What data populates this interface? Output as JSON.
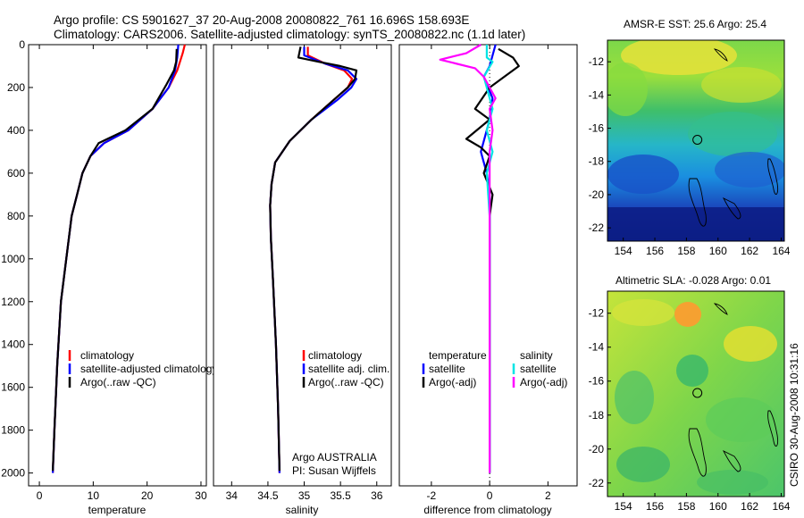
{
  "header": {
    "line1": "Argo profile: CS 5901627_37 20-Aug-2008 20080822_761 16.696S 158.693E",
    "line2": "Climatology: CARS2006. Satellite-adjusted climatology: synTS_20080822.nc (1.1d later)"
  },
  "side_label": "CSIRO 30-Aug-2008 10:31:16",
  "colors": {
    "climatology": "#ff0000",
    "satellite": "#0000ff",
    "argo": "#000000",
    "satellite_salinity": "#00e5e5",
    "argo_salinity": "#ff00ff"
  },
  "chart_data": [
    {
      "type": "line",
      "xlabel": "temperature",
      "xlim": [
        -2,
        31
      ],
      "ylim": [
        2060,
        0
      ],
      "xticks": [
        "0",
        "10",
        "20",
        "30"
      ],
      "yticks": [
        "0",
        "200",
        "400",
        "600",
        "800",
        "1000",
        "1200",
        "1400",
        "1600",
        "1800",
        "2000"
      ],
      "legend": [
        "climatology",
        "satellite-adjusted climatology",
        "Argo(..raw -QC)"
      ],
      "series": [
        {
          "name": "climatology",
          "color": "red",
          "points": [
            [
              27,
              0
            ],
            [
              26.6,
              40
            ],
            [
              25.6,
              120
            ],
            [
              24,
              200
            ],
            [
              21,
              300
            ],
            [
              16.5,
              400
            ],
            [
              12,
              460
            ],
            [
              9.5,
              520
            ],
            [
              8,
              600
            ],
            [
              7,
              700
            ],
            [
              6,
              800
            ],
            [
              5,
              1000
            ],
            [
              4,
              1200
            ],
            [
              3.3,
              1500
            ],
            [
              2.8,
              1800
            ],
            [
              2.5,
              2000
            ]
          ]
        },
        {
          "name": "satellite-adjusted climatology",
          "color": "blue",
          "points": [
            [
              25.8,
              0
            ],
            [
              25.6,
              60
            ],
            [
              25.2,
              120
            ],
            [
              24,
              200
            ],
            [
              21,
              300
            ],
            [
              16.5,
              400
            ],
            [
              12,
              460
            ],
            [
              9.5,
              520
            ],
            [
              8,
              600
            ],
            [
              7,
              700
            ],
            [
              6,
              800
            ],
            [
              5,
              1000
            ],
            [
              4,
              1200
            ],
            [
              3.3,
              1500
            ],
            [
              2.8,
              1800
            ],
            [
              2.5,
              2000
            ]
          ]
        },
        {
          "name": "Argo(..raw -QC)",
          "color": "black",
          "points": [
            [
              25.5,
              20
            ],
            [
              25.4,
              80
            ],
            [
              25,
              120
            ],
            [
              23.5,
              190
            ],
            [
              21,
              300
            ],
            [
              16,
              400
            ],
            [
              11,
              460
            ],
            [
              9.5,
              520
            ],
            [
              8,
              600
            ],
            [
              7,
              700
            ],
            [
              6,
              800
            ],
            [
              5,
              1000
            ],
            [
              4,
              1200
            ],
            [
              3.3,
              1500
            ],
            [
              2.8,
              1800
            ],
            [
              2.5,
              1990
            ]
          ]
        }
      ]
    },
    {
      "type": "line",
      "xlabel": "salinity",
      "xlim": [
        33.75,
        36.2
      ],
      "ylim": [
        2060,
        0
      ],
      "xticks": [
        "34",
        "34.5",
        "35",
        "35.5",
        "36"
      ],
      "legend": [
        "climatology",
        "satellite adj. clim.",
        "Argo(..raw -QC)"
      ],
      "annotation": [
        "Argo AUSTRALIA",
        "PI: Susan Wijffels"
      ],
      "series": [
        {
          "name": "climatology",
          "color": "red",
          "points": [
            [
              35.05,
              10
            ],
            [
              35.05,
              50
            ],
            [
              35.3,
              90
            ],
            [
              35.55,
              120
            ],
            [
              35.66,
              160
            ],
            [
              35.6,
              200
            ],
            [
              35.4,
              260
            ],
            [
              35.1,
              350
            ],
            [
              34.8,
              450
            ],
            [
              34.6,
              550
            ],
            [
              34.55,
              650
            ],
            [
              34.53,
              750
            ],
            [
              34.54,
              900
            ],
            [
              34.57,
              1100
            ],
            [
              34.61,
              1400
            ],
            [
              34.64,
              1700
            ],
            [
              34.66,
              2000
            ]
          ]
        },
        {
          "name": "satellite adj. clim.",
          "color": "blue",
          "points": [
            [
              35,
              10
            ],
            [
              35,
              50
            ],
            [
              35.3,
              90
            ],
            [
              35.6,
              120
            ],
            [
              35.72,
              160
            ],
            [
              35.65,
              200
            ],
            [
              35.45,
              260
            ],
            [
              35.1,
              350
            ],
            [
              34.8,
              450
            ],
            [
              34.6,
              550
            ],
            [
              34.55,
              650
            ],
            [
              34.53,
              750
            ],
            [
              34.54,
              900
            ],
            [
              34.57,
              1100
            ],
            [
              34.61,
              1400
            ],
            [
              34.64,
              1700
            ],
            [
              34.66,
              2000
            ]
          ]
        },
        {
          "name": "Argo(..raw -QC)",
          "color": "black",
          "points": [
            [
              34.95,
              10
            ],
            [
              34.92,
              60
            ],
            [
              35.2,
              80
            ],
            [
              35.5,
              100
            ],
            [
              35.72,
              120
            ],
            [
              35.7,
              160
            ],
            [
              35.6,
              200
            ],
            [
              35.4,
              260
            ],
            [
              35.1,
              350
            ],
            [
              34.8,
              450
            ],
            [
              34.6,
              550
            ],
            [
              34.55,
              650
            ],
            [
              34.53,
              750
            ],
            [
              34.54,
              900
            ],
            [
              34.57,
              1100
            ],
            [
              34.61,
              1400
            ],
            [
              34.64,
              1700
            ],
            [
              34.66,
              1990
            ]
          ]
        }
      ]
    },
    {
      "type": "line",
      "xlabel": "difference from climatology",
      "xlim": [
        -3.1,
        3.0
      ],
      "ylim": [
        2060,
        0
      ],
      "xticks": [
        "-2",
        "0",
        "2"
      ],
      "legend_temperature": {
        "title": "temperature",
        "entries": [
          "satellite",
          "Argo(-adj)"
        ]
      },
      "legend_salinity": {
        "title": "salinity",
        "entries": [
          "satellite",
          "Argo(-adj)"
        ]
      },
      "series": [
        {
          "name": "temperature satellite",
          "color": "blue",
          "points": [
            [
              0.2,
              0
            ],
            [
              0.1,
              50
            ],
            [
              0,
              100
            ],
            [
              -0.2,
              150
            ],
            [
              0.1,
              250
            ],
            [
              0,
              350
            ],
            [
              -0.3,
              500
            ],
            [
              -0.1,
              600
            ],
            [
              0,
              700
            ],
            [
              0,
              900
            ],
            [
              0,
              1200
            ],
            [
              0,
              1600
            ],
            [
              0,
              2000
            ]
          ]
        },
        {
          "name": "temperature Argo(-adj)",
          "color": "black",
          "points": [
            [
              0.3,
              20
            ],
            [
              0.8,
              60
            ],
            [
              1,
              100
            ],
            [
              0.5,
              150
            ],
            [
              0,
              200
            ],
            [
              -0.5,
              300
            ],
            [
              0,
              350
            ],
            [
              -0.8,
              440
            ],
            [
              -0.3,
              480
            ],
            [
              0,
              520
            ],
            [
              -0.2,
              600
            ],
            [
              0.1,
              700
            ],
            [
              0,
              800
            ],
            [
              0,
              1000
            ],
            [
              0,
              1200
            ],
            [
              0,
              1500
            ],
            [
              0,
              2000
            ]
          ]
        },
        {
          "name": "salinity satellite",
          "color": "cyan",
          "points": [
            [
              -0.1,
              0
            ],
            [
              -0.1,
              60
            ],
            [
              0.1,
              80
            ],
            [
              -0.2,
              150
            ],
            [
              0.1,
              300
            ],
            [
              -0.1,
              400
            ],
            [
              0.1,
              500
            ],
            [
              -0.1,
              600
            ],
            [
              0,
              800
            ],
            [
              0,
              1200
            ],
            [
              0,
              1600
            ],
            [
              0,
              2000
            ]
          ]
        },
        {
          "name": "salinity Argo(-adj)",
          "color": "magenta",
          "points": [
            [
              -0.3,
              0
            ],
            [
              -0.8,
              40
            ],
            [
              -1.7,
              70
            ],
            [
              -0.5,
              110
            ],
            [
              -0.2,
              150
            ],
            [
              0,
              200
            ],
            [
              0.2,
              250
            ],
            [
              0,
              300
            ],
            [
              0.1,
              400
            ],
            [
              0,
              500
            ],
            [
              0,
              800
            ],
            [
              0,
              1200
            ],
            [
              0,
              2000
            ]
          ]
        }
      ]
    },
    {
      "type": "heatmap",
      "title": "AMSR-E SST: 25.6 Argo: 25.4",
      "xlim": [
        153,
        164.2
      ],
      "ylim": [
        -22.8,
        -10.7
      ],
      "xticks": [
        "154",
        "156",
        "158",
        "160",
        "162",
        "164"
      ],
      "yticks": [
        "-12",
        "-14",
        "-16",
        "-18",
        "-20",
        "-22"
      ],
      "argo_position": {
        "lon": 158.693,
        "lat": -16.696
      }
    },
    {
      "type": "heatmap",
      "title": "Altimetric SLA: -0.028 Argo: 0.01",
      "xlim": [
        153,
        164.2
      ],
      "ylim": [
        -22.8,
        -10.7
      ],
      "xticks": [
        "154",
        "156",
        "158",
        "160",
        "162",
        "164"
      ],
      "yticks": [
        "-12",
        "-14",
        "-16",
        "-18",
        "-20",
        "-22"
      ],
      "argo_position": {
        "lon": 158.693,
        "lat": -16.696
      }
    }
  ]
}
